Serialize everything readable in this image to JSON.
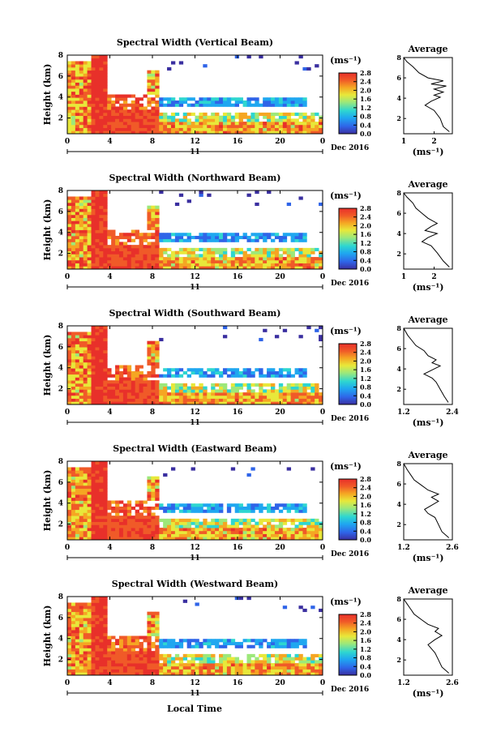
{
  "figure": {
    "panel_titles": [
      "Spectral Width (Vertical Beam)",
      "Spectral Width (Northward Beam)",
      "Spectral Width (Southward Beam)",
      "Spectral Width (Eastward Beam)",
      "Spectral Width (Westward Beam)"
    ],
    "ylabel": "Height (km)",
    "xlabel_bottom": "Local Time",
    "date_day": "11",
    "date_label": "Dec 2016",
    "colorbar_unit": "(ms⁻¹)",
    "average_title": "Average",
    "average_unit": "(ms⁻¹)",
    "colors": {
      "white_bg": "#ffffff",
      "line": "#000000",
      "cmap": [
        "#3a2fa0",
        "#2f64e8",
        "#1fa7f0",
        "#2ed6d0",
        "#9de87a",
        "#e8e83a",
        "#f5a623",
        "#f05a28",
        "#e8302a"
      ]
    }
  },
  "chart_data": [
    {
      "type": "heatmap",
      "title": "Spectral Width (Vertical Beam)",
      "ylabel": "Height (km)",
      "x_ticks": [
        "0",
        "4",
        "8",
        "12",
        "16",
        "20",
        "0"
      ],
      "y_ticks": [
        "2",
        "4",
        "6",
        "8"
      ],
      "xlim": [
        0,
        24
      ],
      "ylim": [
        0.5,
        8
      ],
      "colorbar": {
        "ticks": [
          "0.0",
          "0.4",
          "0.8",
          "1.2",
          "1.6",
          "2.0",
          "2.4",
          "2.8"
        ],
        "range": [
          0,
          2.8
        ]
      },
      "profile": {
        "title": "Average",
        "x_ticks": [
          "1",
          "2"
        ],
        "xlim": [
          1,
          2.6
        ],
        "y_ticks": [
          "2",
          "4",
          "6",
          "8"
        ],
        "ylim": [
          0.5,
          8
        ],
        "points": [
          [
            2.5,
            0.7
          ],
          [
            2.3,
            1.2
          ],
          [
            2.2,
            2.0
          ],
          [
            2.0,
            2.8
          ],
          [
            1.7,
            3.3
          ],
          [
            1.9,
            3.7
          ],
          [
            2.2,
            4.1
          ],
          [
            2.0,
            4.3
          ],
          [
            2.3,
            4.6
          ],
          [
            2.0,
            4.9
          ],
          [
            2.4,
            5.2
          ],
          [
            1.9,
            5.4
          ],
          [
            2.3,
            5.7
          ],
          [
            1.8,
            6.0
          ],
          [
            1.5,
            6.5
          ],
          [
            1.3,
            7.1
          ],
          [
            1.1,
            7.6
          ],
          [
            1.0,
            8.0
          ]
        ]
      }
    },
    {
      "type": "heatmap",
      "title": "Spectral Width (Northward Beam)",
      "ylabel": "Height (km)",
      "x_ticks": [
        "0",
        "4",
        "8",
        "12",
        "16",
        "20",
        "0"
      ],
      "y_ticks": [
        "2",
        "4",
        "6",
        "8"
      ],
      "xlim": [
        0,
        24
      ],
      "ylim": [
        0.5,
        8
      ],
      "colorbar": {
        "ticks": [
          "0.0",
          "0.4",
          "0.8",
          "1.2",
          "1.6",
          "2.0",
          "2.4",
          "2.8"
        ],
        "range": [
          0,
          2.8
        ]
      },
      "profile": {
        "title": "Average",
        "x_ticks": [
          "1",
          "2"
        ],
        "xlim": [
          1,
          2.6
        ],
        "y_ticks": [
          "2",
          "4",
          "6",
          "8"
        ],
        "ylim": [
          0.5,
          8
        ],
        "points": [
          [
            2.5,
            0.7
          ],
          [
            2.3,
            1.3
          ],
          [
            2.1,
            2.1
          ],
          [
            1.9,
            2.8
          ],
          [
            1.6,
            3.2
          ],
          [
            1.8,
            3.6
          ],
          [
            2.1,
            4.0
          ],
          [
            1.7,
            4.3
          ],
          [
            1.9,
            4.7
          ],
          [
            2.1,
            5.0
          ],
          [
            1.8,
            5.5
          ],
          [
            1.6,
            6.0
          ],
          [
            1.4,
            6.5
          ],
          [
            1.3,
            7.0
          ],
          [
            1.1,
            7.6
          ],
          [
            1.0,
            8.0
          ]
        ]
      }
    },
    {
      "type": "heatmap",
      "title": "Spectral Width (Southward Beam)",
      "ylabel": "Height (km)",
      "x_ticks": [
        "0",
        "4",
        "8",
        "12",
        "16",
        "20",
        "0"
      ],
      "y_ticks": [
        "2",
        "4",
        "6",
        "8"
      ],
      "xlim": [
        0,
        24
      ],
      "ylim": [
        0.5,
        8
      ],
      "colorbar": {
        "ticks": [
          "0.0",
          "0.4",
          "0.8",
          "1.2",
          "1.6",
          "2.0",
          "2.4",
          "2.8"
        ],
        "range": [
          0,
          2.8
        ]
      },
      "profile": {
        "title": "Average",
        "x_ticks": [
          "1.2",
          "2.4"
        ],
        "xlim": [
          1.2,
          2.4
        ],
        "y_ticks": [
          "2",
          "4",
          "6",
          "8"
        ],
        "ylim": [
          0.5,
          8
        ],
        "points": [
          [
            2.3,
            0.7
          ],
          [
            2.2,
            1.3
          ],
          [
            2.1,
            2.0
          ],
          [
            2.0,
            2.7
          ],
          [
            1.9,
            3.1
          ],
          [
            1.7,
            3.5
          ],
          [
            1.9,
            3.9
          ],
          [
            2.1,
            4.3
          ],
          [
            1.9,
            4.6
          ],
          [
            2.0,
            4.9
          ],
          [
            1.8,
            5.3
          ],
          [
            1.7,
            5.8
          ],
          [
            1.5,
            6.3
          ],
          [
            1.4,
            6.8
          ],
          [
            1.3,
            7.3
          ],
          [
            1.2,
            8.0
          ]
        ]
      }
    },
    {
      "type": "heatmap",
      "title": "Spectral Width (Eastward Beam)",
      "ylabel": "Height (km)",
      "x_ticks": [
        "0",
        "4",
        "8",
        "12",
        "16",
        "20",
        "0"
      ],
      "y_ticks": [
        "2",
        "4",
        "6",
        "8"
      ],
      "xlim": [
        0,
        24
      ],
      "ylim": [
        0.5,
        8
      ],
      "colorbar": {
        "ticks": [
          "0.0",
          "0.4",
          "0.8",
          "1.2",
          "1.6",
          "2.0",
          "2.4",
          "2.8"
        ],
        "range": [
          0,
          2.8
        ]
      },
      "profile": {
        "title": "Average",
        "x_ticks": [
          "1.2",
          "2.6"
        ],
        "xlim": [
          1.2,
          2.6
        ],
        "y_ticks": [
          "2",
          "4",
          "6",
          "8"
        ],
        "ylim": [
          0.5,
          8
        ],
        "points": [
          [
            2.5,
            0.7
          ],
          [
            2.3,
            1.3
          ],
          [
            2.2,
            2.0
          ],
          [
            2.1,
            2.7
          ],
          [
            1.9,
            3.1
          ],
          [
            1.8,
            3.5
          ],
          [
            2.0,
            3.9
          ],
          [
            2.2,
            4.3
          ],
          [
            2.0,
            4.7
          ],
          [
            2.2,
            5.0
          ],
          [
            1.9,
            5.4
          ],
          [
            1.7,
            5.9
          ],
          [
            1.5,
            6.4
          ],
          [
            1.4,
            6.9
          ],
          [
            1.3,
            7.4
          ],
          [
            1.2,
            8.0
          ]
        ]
      }
    },
    {
      "type": "heatmap",
      "title": "Spectral Width (Westward Beam)",
      "ylabel": "Height (km)",
      "x_ticks": [
        "0",
        "4",
        "8",
        "12",
        "16",
        "20",
        "0"
      ],
      "y_ticks": [
        "2",
        "4",
        "6",
        "8"
      ],
      "xlim": [
        0,
        24
      ],
      "ylim": [
        0.5,
        8
      ],
      "colorbar": {
        "ticks": [
          "0.0",
          "0.4",
          "0.8",
          "1.2",
          "1.6",
          "2.0",
          "2.4",
          "2.8"
        ],
        "range": [
          0,
          2.8
        ]
      },
      "profile": {
        "title": "Average",
        "x_ticks": [
          "1.2",
          "2.6"
        ],
        "xlim": [
          1.2,
          2.6
        ],
        "y_ticks": [
          "2",
          "4",
          "6",
          "8"
        ],
        "ylim": [
          0.5,
          8
        ],
        "points": [
          [
            2.5,
            0.7
          ],
          [
            2.3,
            1.3
          ],
          [
            2.2,
            2.0
          ],
          [
            2.1,
            2.7
          ],
          [
            2.0,
            3.1
          ],
          [
            1.9,
            3.5
          ],
          [
            2.1,
            4.0
          ],
          [
            2.3,
            4.4
          ],
          [
            2.1,
            4.8
          ],
          [
            2.2,
            5.1
          ],
          [
            1.9,
            5.5
          ],
          [
            1.7,
            6.0
          ],
          [
            1.5,
            6.5
          ],
          [
            1.4,
            7.0
          ],
          [
            1.3,
            7.5
          ],
          [
            1.2,
            8.0
          ]
        ]
      }
    }
  ]
}
